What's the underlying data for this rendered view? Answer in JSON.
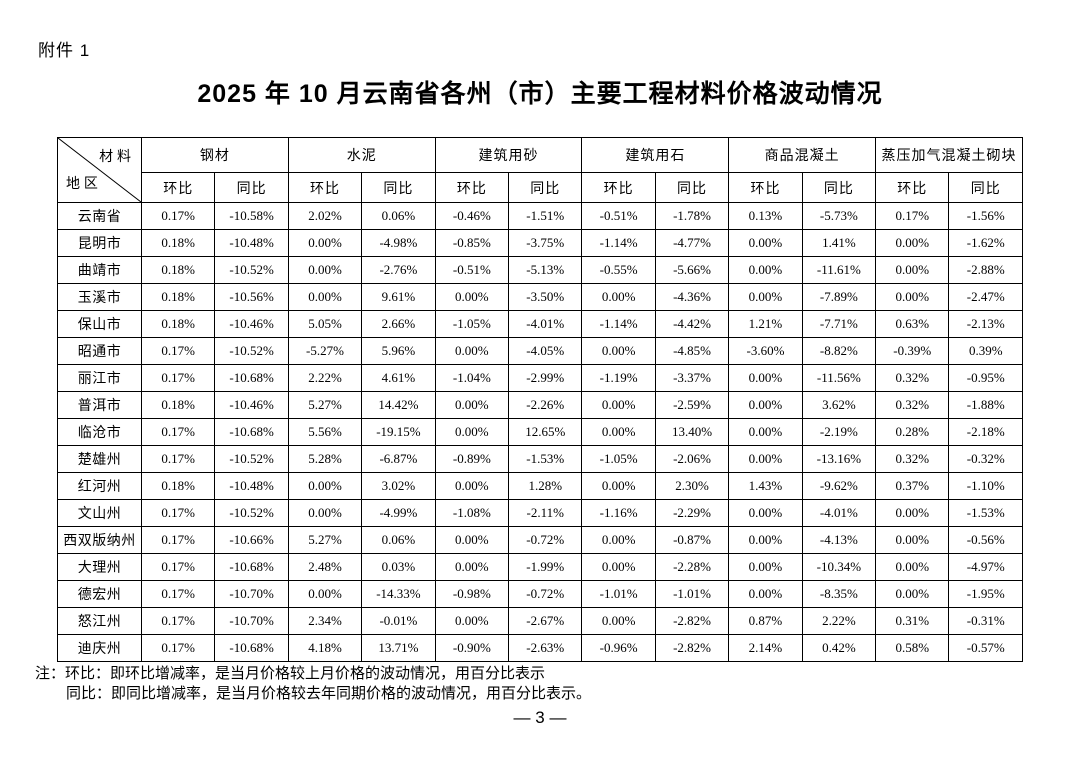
{
  "page": {
    "attachment_label": "附件 1",
    "title": "2025 年 10 月云南省各州（市）主要工程材料价格波动情况",
    "notes": [
      "注：环比：即环比增减率，是当月价格较上月价格的波动情况，用百分比表示",
      "同比：即同比增减率，是当月价格较去年同期价格的波动情况，用百分比表示。"
    ],
    "page_number": "— 3 —"
  },
  "table": {
    "corner": {
      "top_label": "材 料",
      "bottom_label": "地 区"
    },
    "material_groups": [
      "钢材",
      "水泥",
      "建筑用砂",
      "建筑用石",
      "商品混凝土",
      "蒸压加气混凝土砌块"
    ],
    "sub_headers": [
      "环比",
      "同比"
    ],
    "rows": [
      {
        "region": "云南省",
        "values": [
          "0.17%",
          "-10.58%",
          "2.02%",
          "0.06%",
          "-0.46%",
          "-1.51%",
          "-0.51%",
          "-1.78%",
          "0.13%",
          "-5.73%",
          "0.17%",
          "-1.56%"
        ]
      },
      {
        "region": "昆明市",
        "values": [
          "0.18%",
          "-10.48%",
          "0.00%",
          "-4.98%",
          "-0.85%",
          "-3.75%",
          "-1.14%",
          "-4.77%",
          "0.00%",
          "1.41%",
          "0.00%",
          "-1.62%"
        ]
      },
      {
        "region": "曲靖市",
        "values": [
          "0.18%",
          "-10.52%",
          "0.00%",
          "-2.76%",
          "-0.51%",
          "-5.13%",
          "-0.55%",
          "-5.66%",
          "0.00%",
          "-11.61%",
          "0.00%",
          "-2.88%"
        ]
      },
      {
        "region": "玉溪市",
        "values": [
          "0.18%",
          "-10.56%",
          "0.00%",
          "9.61%",
          "0.00%",
          "-3.50%",
          "0.00%",
          "-4.36%",
          "0.00%",
          "-7.89%",
          "0.00%",
          "-2.47%"
        ]
      },
      {
        "region": "保山市",
        "values": [
          "0.18%",
          "-10.46%",
          "5.05%",
          "2.66%",
          "-1.05%",
          "-4.01%",
          "-1.14%",
          "-4.42%",
          "1.21%",
          "-7.71%",
          "0.63%",
          "-2.13%"
        ]
      },
      {
        "region": "昭通市",
        "values": [
          "0.17%",
          "-10.52%",
          "-5.27%",
          "5.96%",
          "0.00%",
          "-4.05%",
          "0.00%",
          "-4.85%",
          "-3.60%",
          "-8.82%",
          "-0.39%",
          "0.39%"
        ]
      },
      {
        "region": "丽江市",
        "values": [
          "0.17%",
          "-10.68%",
          "2.22%",
          "4.61%",
          "-1.04%",
          "-2.99%",
          "-1.19%",
          "-3.37%",
          "0.00%",
          "-11.56%",
          "0.32%",
          "-0.95%"
        ]
      },
      {
        "region": "普洱市",
        "values": [
          "0.18%",
          "-10.46%",
          "5.27%",
          "14.42%",
          "0.00%",
          "-2.26%",
          "0.00%",
          "-2.59%",
          "0.00%",
          "3.62%",
          "0.32%",
          "-1.88%"
        ]
      },
      {
        "region": "临沧市",
        "values": [
          "0.17%",
          "-10.68%",
          "5.56%",
          "-19.15%",
          "0.00%",
          "12.65%",
          "0.00%",
          "13.40%",
          "0.00%",
          "-2.19%",
          "0.28%",
          "-2.18%"
        ]
      },
      {
        "region": "楚雄州",
        "values": [
          "0.17%",
          "-10.52%",
          "5.28%",
          "-6.87%",
          "-0.89%",
          "-1.53%",
          "-1.05%",
          "-2.06%",
          "0.00%",
          "-13.16%",
          "0.32%",
          "-0.32%"
        ]
      },
      {
        "region": "红河州",
        "values": [
          "0.18%",
          "-10.48%",
          "0.00%",
          "3.02%",
          "0.00%",
          "1.28%",
          "0.00%",
          "2.30%",
          "1.43%",
          "-9.62%",
          "0.37%",
          "-1.10%"
        ]
      },
      {
        "region": "文山州",
        "values": [
          "0.17%",
          "-10.52%",
          "0.00%",
          "-4.99%",
          "-1.08%",
          "-2.11%",
          "-1.16%",
          "-2.29%",
          "0.00%",
          "-4.01%",
          "0.00%",
          "-1.53%"
        ]
      },
      {
        "region": "西双版纳州",
        "values": [
          "0.17%",
          "-10.66%",
          "5.27%",
          "0.06%",
          "0.00%",
          "-0.72%",
          "0.00%",
          "-0.87%",
          "0.00%",
          "-4.13%",
          "0.00%",
          "-0.56%"
        ]
      },
      {
        "region": "大理州",
        "values": [
          "0.17%",
          "-10.68%",
          "2.48%",
          "0.03%",
          "0.00%",
          "-1.99%",
          "0.00%",
          "-2.28%",
          "0.00%",
          "-10.34%",
          "0.00%",
          "-4.97%"
        ]
      },
      {
        "region": "德宏州",
        "values": [
          "0.17%",
          "-10.70%",
          "0.00%",
          "-14.33%",
          "-0.98%",
          "-0.72%",
          "-1.01%",
          "-1.01%",
          "0.00%",
          "-8.35%",
          "0.00%",
          "-1.95%"
        ]
      },
      {
        "region": "怒江州",
        "values": [
          "0.17%",
          "-10.70%",
          "2.34%",
          "-0.01%",
          "0.00%",
          "-2.67%",
          "0.00%",
          "-2.82%",
          "0.87%",
          "2.22%",
          "0.31%",
          "-0.31%"
        ]
      },
      {
        "region": "迪庆州",
        "values": [
          "0.17%",
          "-10.68%",
          "4.18%",
          "13.71%",
          "-0.90%",
          "-2.63%",
          "-0.96%",
          "-2.82%",
          "2.14%",
          "0.42%",
          "0.58%",
          "-0.57%"
        ]
      }
    ]
  }
}
